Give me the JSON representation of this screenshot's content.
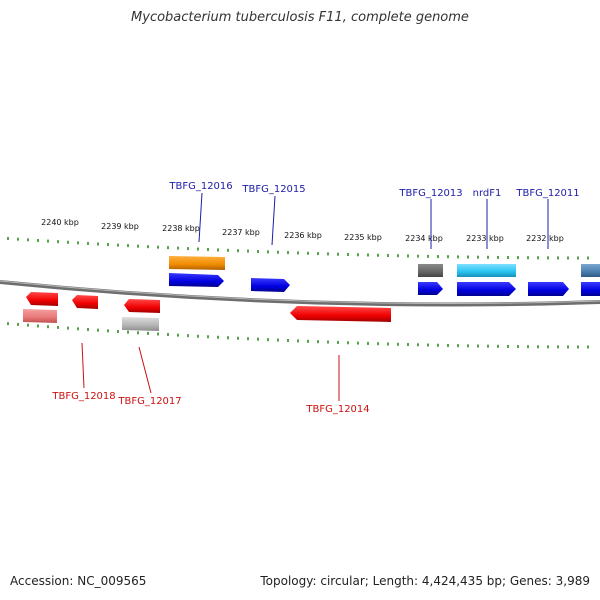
{
  "title": "Mycobacterium tuberculosis F11, complete genome",
  "footer": {
    "accession": "Accession: NC_009565",
    "topology": "Topology: circular; Length: 4,424,435 bp; Genes: 3,989"
  },
  "colors": {
    "backbone": "#7d7d7d",
    "tick": "#2e8b22",
    "label_forward": "#1c1ca8",
    "label_reverse": "#cc1111",
    "cds_forward": "#0000e6",
    "cds_reverse": "#ff0000",
    "gene_orange": "#f08c00",
    "gene_gray": "#666666",
    "gene_cyan": "#27c2f0",
    "gene_steel": "#4a7fb0",
    "gene_pink": "#e87878",
    "gene_light_gray": "#b4b4b4"
  },
  "scale": {
    "unit": "kbp",
    "labels": [
      "2240 kbp",
      "2239 kbp",
      "2238 kbp",
      "2237 kbp",
      "2236 kbp",
      "2235 kbp",
      "2234 kbp",
      "2233 kbp",
      "2232 kbp"
    ]
  },
  "gene_labels": {
    "forward": [
      "TBFG_12016",
      "TBFG_12015",
      "TBFG_12013",
      "nrdF1",
      "TBFG_12011"
    ],
    "reverse": [
      "TBFG_12018",
      "TBFG_12017",
      "TBFG_12014"
    ]
  }
}
